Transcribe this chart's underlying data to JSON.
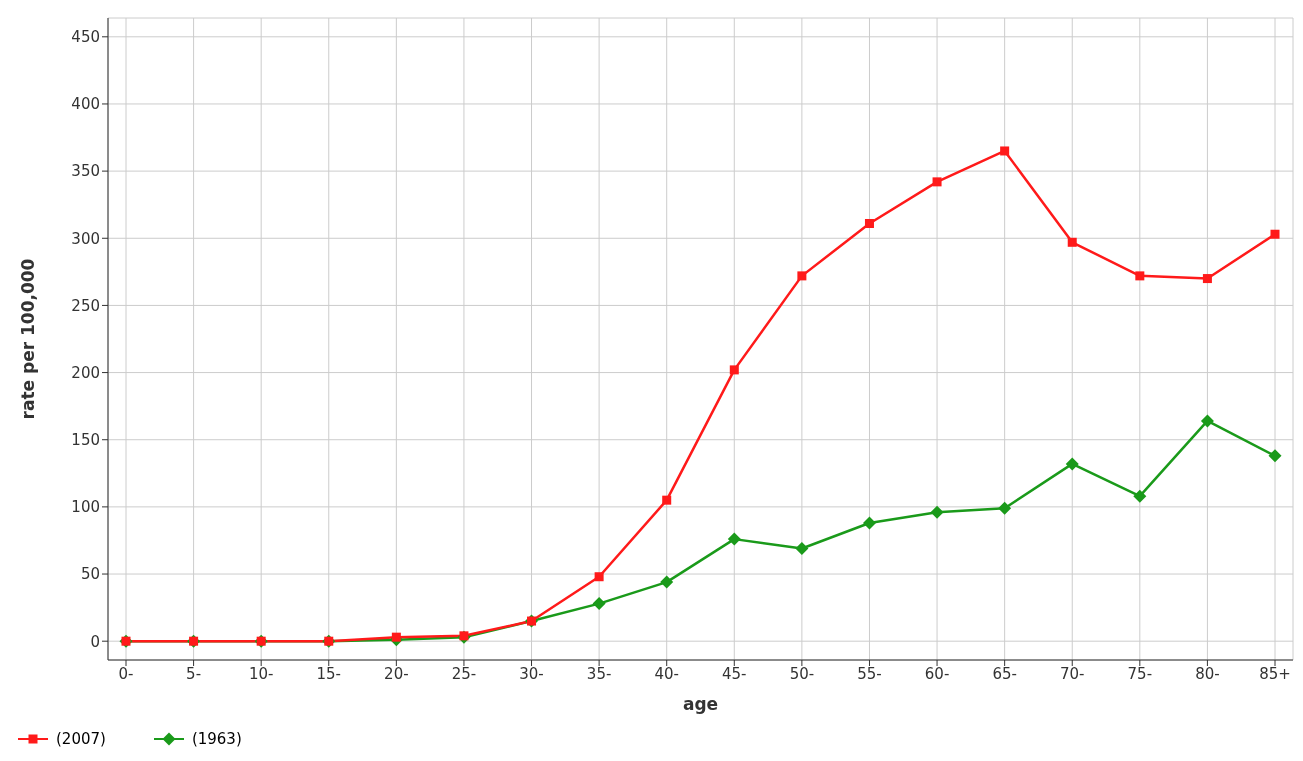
{
  "chart_data": {
    "type": "line",
    "xlabel": "age",
    "ylabel": "rate per 100,000",
    "categories": [
      "0-",
      "5-",
      "10-",
      "15-",
      "20-",
      "25-",
      "30-",
      "35-",
      "40-",
      "45-",
      "50-",
      "55-",
      "60-",
      "65-",
      "70-",
      "75-",
      "80-",
      "85+"
    ],
    "series": [
      {
        "name": "(2007)",
        "color": "#ff1a1a",
        "marker": "square",
        "values": [
          0,
          0,
          0,
          0,
          3,
          4,
          15,
          48,
          105,
          202,
          272,
          311,
          342,
          365,
          297,
          272,
          270,
          303
        ]
      },
      {
        "name": "(1963)",
        "color": "#1a9a1a",
        "marker": "diamond",
        "values": [
          0,
          0,
          0,
          0,
          1,
          3,
          15,
          28,
          44,
          76,
          69,
          88,
          96,
          99,
          132,
          108,
          164,
          138
        ]
      }
    ],
    "ylim": [
      -14,
      464
    ],
    "yticks": [
      0,
      50,
      100,
      150,
      200,
      250,
      300,
      350,
      400,
      450
    ],
    "grid": true,
    "legend": "bottom left",
    "line_style": "solid"
  }
}
